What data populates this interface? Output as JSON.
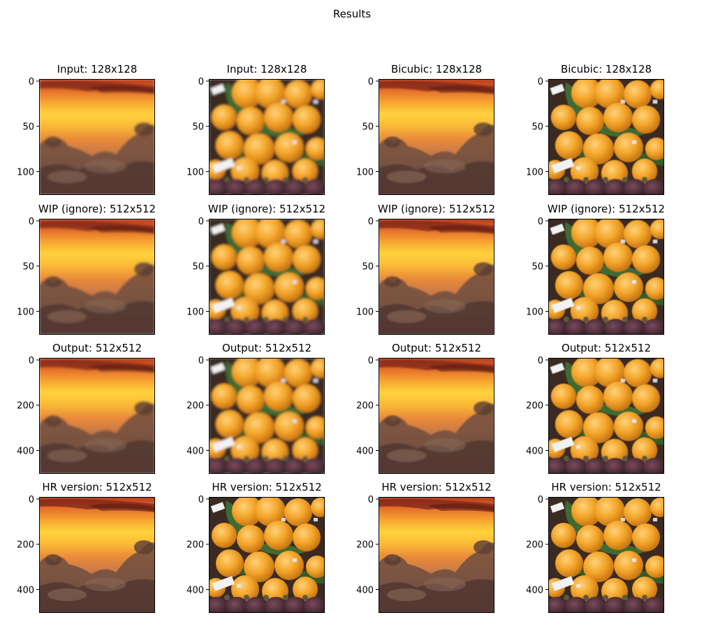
{
  "figure": {
    "title": "Results"
  },
  "colors": {
    "sunset_sky": "#f6a12a",
    "sunset_band": "#ffd23a",
    "cloud": "#6e4e40",
    "orange_fruit": "#f2a52a",
    "leaf": "#3f6b32",
    "mangosteen": "#4a2a3a"
  },
  "rows": [
    {
      "panels": [
        {
          "title": "Input: 128x128",
          "image": "sunset",
          "yticks": [
            "0",
            "50",
            "100"
          ],
          "blur": 1.6
        },
        {
          "title": "Input: 128x128",
          "image": "fruit",
          "yticks": [
            "0",
            "50",
            "100"
          ],
          "blur": 1.6
        },
        {
          "title": "Bicubic: 128x128",
          "image": "sunset",
          "yticks": [
            "0",
            "50",
            "100"
          ],
          "blur": 1.0
        },
        {
          "title": "Bicubic: 128x128",
          "image": "fruit",
          "yticks": [
            "0",
            "50",
            "100"
          ],
          "blur": 0.6
        }
      ]
    },
    {
      "panels": [
        {
          "title": "WIP (ignore): 512x512",
          "image": "sunset",
          "yticks": [
            "0",
            "50",
            "100"
          ],
          "blur": 1.6
        },
        {
          "title": "WIP (ignore): 512x512",
          "image": "fruit",
          "yticks": [
            "0",
            "50",
            "100"
          ],
          "blur": 1.6
        },
        {
          "title": "WIP (ignore): 512x512",
          "image": "sunset",
          "yticks": [
            "0",
            "50",
            "100"
          ],
          "blur": 1.0
        },
        {
          "title": "WIP (ignore): 512x512",
          "image": "fruit",
          "yticks": [
            "0",
            "50",
            "100"
          ],
          "blur": 0.6
        }
      ]
    },
    {
      "panels": [
        {
          "title": "Output: 512x512",
          "image": "sunset",
          "yticks": [
            "0",
            "200",
            "400"
          ],
          "blur": 1.6
        },
        {
          "title": "Output: 512x512",
          "image": "fruit",
          "yticks": [
            "0",
            "200",
            "400"
          ],
          "blur": 1.6
        },
        {
          "title": "Output: 512x512",
          "image": "sunset",
          "yticks": [
            "0",
            "200",
            "400"
          ],
          "blur": 1.0
        },
        {
          "title": "Output: 512x512",
          "image": "fruit",
          "yticks": [
            "0",
            "200",
            "400"
          ],
          "blur": 0.6
        }
      ]
    },
    {
      "panels": [
        {
          "title": "HR version: 512x512",
          "image": "sunset",
          "yticks": [
            "0",
            "200",
            "400"
          ],
          "blur": 0
        },
        {
          "title": "HR version: 512x512",
          "image": "fruit",
          "yticks": [
            "0",
            "200",
            "400"
          ],
          "blur": 0
        },
        {
          "title": "HR version: 512x512",
          "image": "sunset",
          "yticks": [
            "0",
            "200",
            "400"
          ],
          "blur": 0
        },
        {
          "title": "HR version: 512x512",
          "image": "fruit",
          "yticks": [
            "0",
            "200",
            "400"
          ],
          "blur": 0
        }
      ]
    }
  ]
}
